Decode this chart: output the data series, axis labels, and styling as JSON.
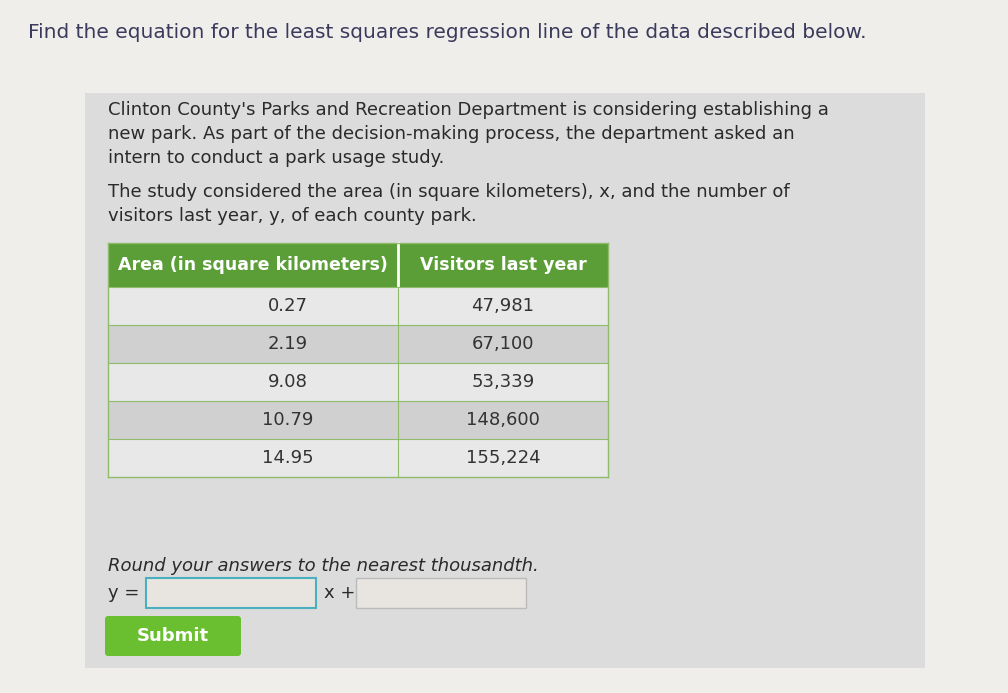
{
  "title": "Find the equation for the least squares regression line of the data described below.",
  "bg_outer": "#f0eeeb",
  "bg_inner": "#dcdcdc",
  "paragraph1_line1": "Clinton County's Parks and Recreation Department is considering establishing a",
  "paragraph1_line2": "new park. As part of the decision-making process, the department asked an",
  "paragraph1_line3": "intern to conduct a park usage study.",
  "paragraph2_line1": "The study considered the area (in square kilometers), x, and the number of",
  "paragraph2_line2": "visitors last year, y, of each county park.",
  "table_header": [
    "Area (in square kilometers)",
    "Visitors last year"
  ],
  "table_header_bg": "#5b9e38",
  "table_header_color": "#ffffff",
  "table_data": [
    [
      "0.27",
      "47,981"
    ],
    [
      "2.19",
      "67,100"
    ],
    [
      "9.08",
      "53,339"
    ],
    [
      "10.79",
      "148,600"
    ],
    [
      "14.95",
      "155,224"
    ]
  ],
  "table_row_bg_even": "#e8e8e8",
  "table_row_bg_odd": "#d0d0d0",
  "table_border_color": "#8fbc6a",
  "italic_text": "Round your answers to the nearest thousandth.",
  "equation_label": "y =",
  "equation_middle": "x +",
  "input_box1_border": "#4ab0c0",
  "input_box2_border": "#bbbbbb",
  "input_box_fill": "#e8e4df",
  "submit_bg": "#6abf30",
  "submit_text": "Submit",
  "submit_text_color": "#ffffff",
  "title_color": "#3a3a5c",
  "body_color": "#2a2a2a",
  "body_color2": "#333333"
}
